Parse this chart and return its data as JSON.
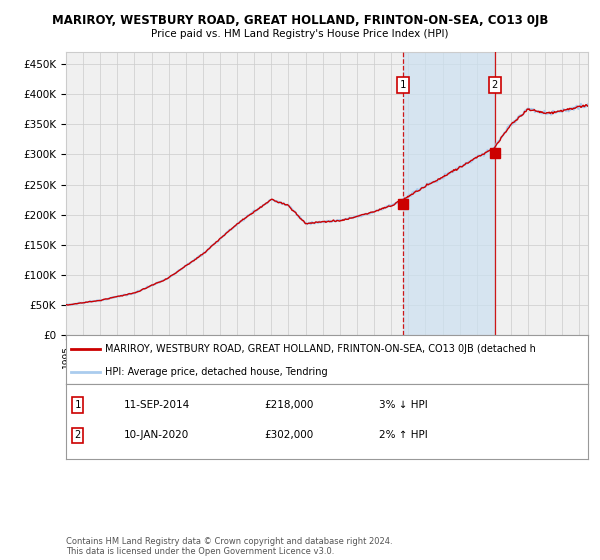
{
  "title": "MARIROY, WESTBURY ROAD, GREAT HOLLAND, FRINTON-ON-SEA, CO13 0JB",
  "subtitle": "Price paid vs. HM Land Registry's House Price Index (HPI)",
  "ylim": [
    0,
    470000
  ],
  "yticks": [
    0,
    50000,
    100000,
    150000,
    200000,
    250000,
    300000,
    350000,
    400000,
    450000
  ],
  "ytick_labels": [
    "£0",
    "£50K",
    "£100K",
    "£150K",
    "£200K",
    "£250K",
    "£300K",
    "£350K",
    "£400K",
    "£450K"
  ],
  "hpi_color": "#aaccee",
  "price_color": "#cc0000",
  "sale1_year": 2014.7,
  "sale1_price": 218000,
  "sale2_year": 2020.05,
  "sale2_price": 302000,
  "legend_line1": "MARIROY, WESTBURY ROAD, GREAT HOLLAND, FRINTON-ON-SEA, CO13 0JB (detached h",
  "legend_line2": "HPI: Average price, detached house, Tendring",
  "sale1_date": "11-SEP-2014",
  "sale1_amount": "£218,000",
  "sale1_info": "3% ↓ HPI",
  "sale2_date": "10-JAN-2020",
  "sale2_amount": "£302,000",
  "sale2_info": "2% ↑ HPI",
  "footnote1": "Contains HM Land Registry data © Crown copyright and database right 2024.",
  "footnote2": "This data is licensed under the Open Government Licence v3.0.",
  "bg_color": "#ffffff",
  "plot_bg_color": "#f0f0f0",
  "shade_color": "#cce0f0",
  "grid_color": "#cccccc"
}
